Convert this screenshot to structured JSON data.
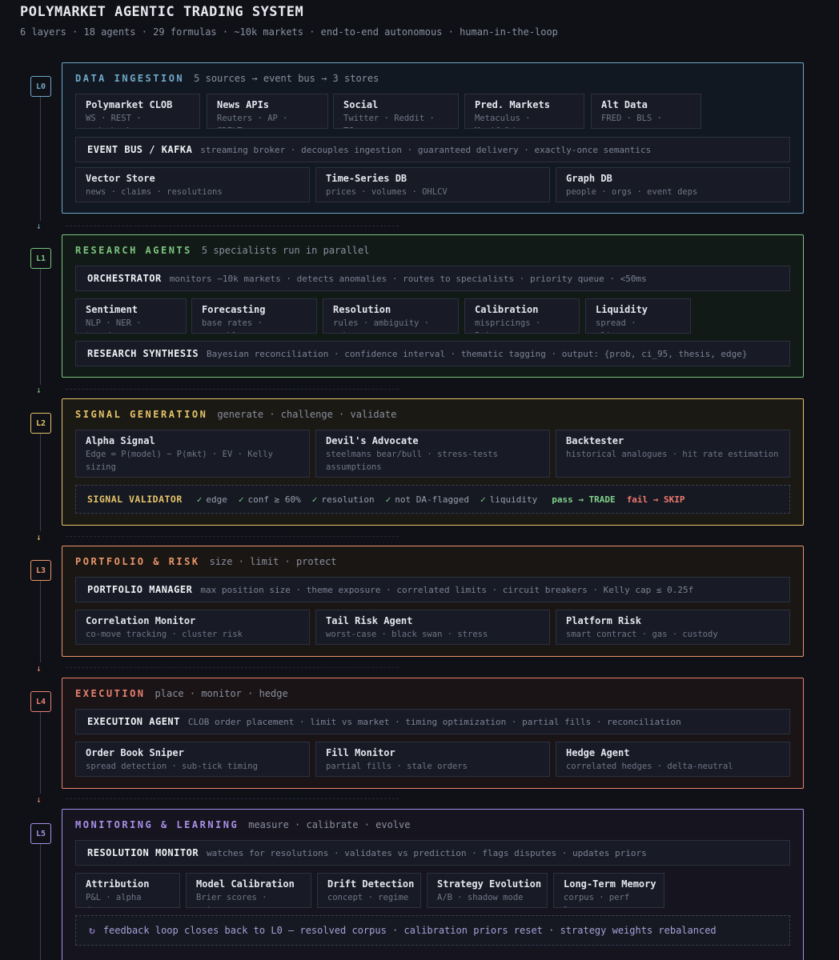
{
  "header": {
    "title": "POLYMARKET AGENTIC TRADING SYSTEM",
    "subtitle": "6 layers · 18 agents · 29 formulas · ~10k markets · end-to-end autonomous · human-in-the-loop"
  },
  "colors": {
    "background": "#0f1117",
    "L0": "#6fa8c8",
    "L1": "#7cc47e",
    "L2": "#e6c36a",
    "L3": "#e8966a",
    "L4": "#e88070",
    "L5": "#a890e8"
  },
  "arrow_glyph": "↓",
  "layers": {
    "L0": {
      "badge": "L0",
      "name": "DATA INGESTION",
      "desc": "5 sources → event bus → 3 stores",
      "sources": [
        {
          "title": "Polymarket CLOB",
          "desc": "WS · REST · orderbook"
        },
        {
          "title": "News APIs",
          "desc": "Reuters · AP · GDELT"
        },
        {
          "title": "Social",
          "desc": "Twitter · Reddit · TG"
        },
        {
          "title": "Pred. Markets",
          "desc": "Metaculus · Manifold"
        },
        {
          "title": "Alt Data",
          "desc": "FRED · BLS · macro"
        }
      ],
      "bus": {
        "title": "EVENT BUS / KAFKA",
        "desc": "streaming broker · decouples ingestion · guaranteed delivery · exactly-once semantics"
      },
      "stores": [
        {
          "title": "Vector Store",
          "desc": "news · claims · resolutions"
        },
        {
          "title": "Time-Series DB",
          "desc": "prices · volumes · OHLCV"
        },
        {
          "title": "Graph DB",
          "desc": "people · orgs · event deps"
        }
      ]
    },
    "L1": {
      "badge": "L1",
      "name": "RESEARCH AGENTS",
      "desc": "5 specialists run in parallel",
      "orchestrator": {
        "title": "ORCHESTRATOR",
        "desc": "monitors ~10k markets · detects anomalies · routes to specialists · priority queue · <50ms"
      },
      "specialists": [
        {
          "title": "Sentiment",
          "desc": "NLP · NER · trends"
        },
        {
          "title": "Forecasting",
          "desc": "base rates · ensemble"
        },
        {
          "title": "Resolution",
          "desc": "rules · ambiguity · arb"
        },
        {
          "title": "Calibration",
          "desc": "mispricings · Brier"
        },
        {
          "title": "Liquidity",
          "desc": "spread · slippage"
        }
      ],
      "synthesis": {
        "title": "RESEARCH SYNTHESIS",
        "desc": "Bayesian reconciliation · confidence interval · thematic tagging · output: {prob, ci_95, thesis, edge}"
      }
    },
    "L2": {
      "badge": "L2",
      "name": "SIGNAL GENERATION",
      "desc": "generate · challenge · validate",
      "agents": [
        {
          "title": "Alpha Signal",
          "desc": "Edge = P(model) − P(mkt) · EV · Kelly sizing"
        },
        {
          "title": "Devil's Advocate",
          "desc": "steelmans bear/bull · stress-tests assumptions"
        },
        {
          "title": "Backtester",
          "desc": "historical analogues · hit rate estimation"
        }
      ],
      "validator": {
        "title": "SIGNAL VALIDATOR",
        "check_glyph": "✓",
        "checks": [
          "edge",
          "conf ≥ 60%",
          "resolution",
          "not DA-flagged",
          "liquidity"
        ],
        "pass": "pass → TRADE",
        "fail": "fail → SKIP"
      }
    },
    "L3": {
      "badge": "L3",
      "name": "PORTFOLIO & RISK",
      "desc": "size · limit · protect",
      "manager": {
        "title": "PORTFOLIO MANAGER",
        "desc": "max position size · theme exposure · correlated limits · circuit breakers · Kelly cap ≤ 0.25f"
      },
      "agents": [
        {
          "title": "Correlation Monitor",
          "desc": "co-move tracking · cluster risk"
        },
        {
          "title": "Tail Risk Agent",
          "desc": "worst-case · black swan · stress"
        },
        {
          "title": "Platform Risk",
          "desc": "smart contract · gas · custody"
        }
      ]
    },
    "L4": {
      "badge": "L4",
      "name": "EXECUTION",
      "desc": "place · monitor · hedge",
      "agent": {
        "title": "EXECUTION AGENT",
        "desc": "CLOB order placement · limit vs market · timing optimization · partial fills · reconciliation"
      },
      "agents": [
        {
          "title": "Order Book Sniper",
          "desc": "spread detection · sub-tick timing"
        },
        {
          "title": "Fill Monitor",
          "desc": "partial fills · stale orders"
        },
        {
          "title": "Hedge Agent",
          "desc": "correlated hedges · delta-neutral"
        }
      ]
    },
    "L5": {
      "badge": "L5",
      "name": "MONITORING & LEARNING",
      "desc": "measure · calibrate · evolve",
      "monitor": {
        "title": "RESOLUTION MONITOR",
        "desc": "watches for resolutions · validates vs prediction · flags disputes · updates priors"
      },
      "agents": [
        {
          "title": "Attribution",
          "desc": "P&L · alpha decay"
        },
        {
          "title": "Model Calibration",
          "desc": "Brier scores · priors"
        },
        {
          "title": "Drift Detection",
          "desc": "concept · regime"
        },
        {
          "title": "Strategy Evolution",
          "desc": "A/B · shadow mode"
        },
        {
          "title": "Long-Term Memory",
          "desc": "corpus · perf logs"
        }
      ],
      "feedback": {
        "icon": "loop-icon",
        "glyph": "↻",
        "text": "feedback loop closes back to L0 — resolved corpus · calibration priors reset · strategy weights rebalanced"
      }
    }
  }
}
